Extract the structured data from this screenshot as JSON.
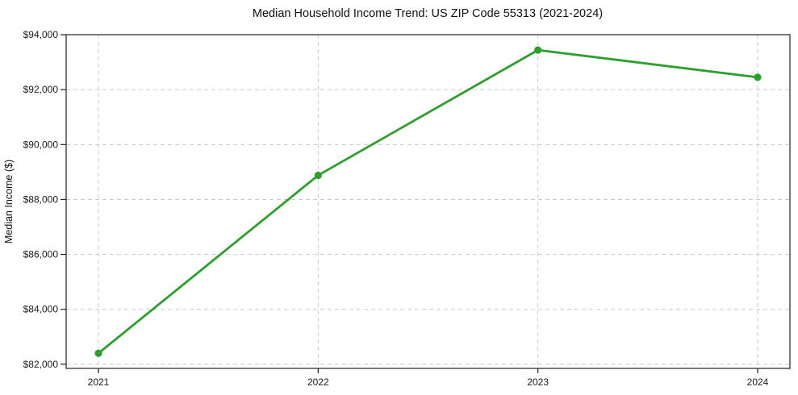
{
  "chart_data": {
    "type": "line",
    "title": "Median Household Income Trend: US ZIP Code 55313 (2021-2024)",
    "xlabel": "",
    "ylabel": "Median Income ($)",
    "categories": [
      "2021",
      "2022",
      "2023",
      "2024"
    ],
    "values": [
      82400,
      88880,
      93440,
      92450
    ],
    "line_color": "#2ca02c",
    "marker": "circle",
    "marker_color": "#2ca02c",
    "grid": true,
    "legend": false,
    "ylim": [
      81848,
      94002
    ],
    "y_ticks": [
      {
        "value": 82000,
        "label": "$82,000"
      },
      {
        "value": 84000,
        "label": "$84,000"
      },
      {
        "value": 86000,
        "label": "$86,000"
      },
      {
        "value": 88000,
        "label": "$88,000"
      },
      {
        "value": 90000,
        "label": "$90,000"
      },
      {
        "value": 92000,
        "label": "$92,000"
      },
      {
        "value": 94000,
        "label": "$94,000"
      }
    ],
    "x_ticks": [
      "2021",
      "2022",
      "2023",
      "2024"
    ]
  }
}
